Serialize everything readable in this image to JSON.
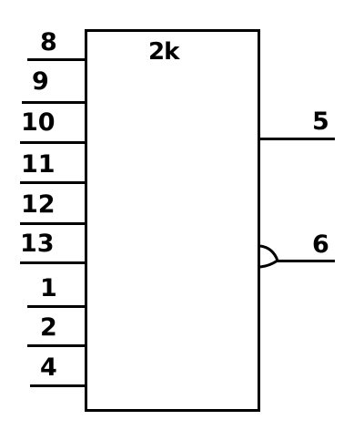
{
  "chip": {
    "title": "2k"
  },
  "left_pins": [
    {
      "label": "8"
    },
    {
      "label": "9"
    },
    {
      "label": "10"
    },
    {
      "label": "11"
    },
    {
      "label": "12"
    },
    {
      "label": "13"
    },
    {
      "label": "1"
    },
    {
      "label": "2"
    },
    {
      "label": "4"
    }
  ],
  "right_pins": [
    {
      "label": "5"
    },
    {
      "label": "6"
    }
  ]
}
